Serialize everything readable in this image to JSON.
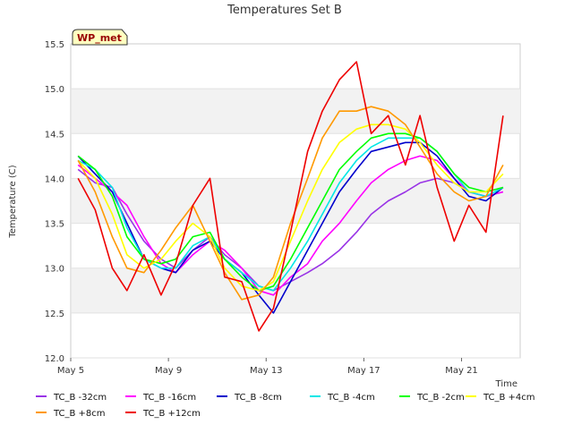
{
  "chart_data": {
    "type": "line",
    "title": "Temperatures Set B",
    "xlabel": "Time",
    "ylabel": "Temperature (C)",
    "site_label": "WP_met",
    "grid": "alternating horizontal bands",
    "legend_position": "bottom",
    "xlim": [
      0,
      18.4
    ],
    "ylim": [
      12.0,
      15.5
    ],
    "x_unit": "days since May 5",
    "xticks": [
      {
        "value": 0,
        "label": "May 5"
      },
      {
        "value": 4,
        "label": "May 9"
      },
      {
        "value": 8,
        "label": "May 13"
      },
      {
        "value": 12,
        "label": "May 17"
      },
      {
        "value": 16,
        "label": "May 21"
      }
    ],
    "yticks": [
      12.0,
      12.5,
      13.0,
      13.5,
      14.0,
      14.5,
      15.0,
      15.5
    ],
    "x": [
      0.3,
      1.0,
      1.7,
      2.3,
      3.0,
      3.7,
      4.3,
      5.0,
      5.7,
      6.3,
      7.0,
      7.7,
      8.3,
      9.0,
      9.7,
      10.3,
      11.0,
      11.7,
      12.3,
      13.0,
      13.7,
      14.3,
      15.0,
      15.7,
      16.3,
      17.0,
      17.7
    ],
    "series": [
      {
        "name": "TC_B -32cm",
        "color": "#9933e6",
        "values": [
          14.1,
          13.95,
          13.9,
          13.6,
          13.3,
          13.1,
          13.0,
          13.2,
          13.35,
          13.15,
          13.0,
          12.8,
          12.75,
          12.85,
          12.95,
          13.05,
          13.2,
          13.4,
          13.6,
          13.75,
          13.85,
          13.95,
          14.0,
          13.95,
          13.85,
          13.8,
          13.85
        ]
      },
      {
        "name": "TC_B -16cm",
        "color": "#ff00ff",
        "values": [
          14.15,
          14.0,
          13.85,
          13.7,
          13.35,
          13.05,
          12.95,
          13.15,
          13.3,
          13.2,
          13.0,
          12.75,
          12.7,
          12.9,
          13.05,
          13.3,
          13.5,
          13.75,
          13.95,
          14.1,
          14.2,
          14.25,
          14.2,
          14.0,
          13.85,
          13.8,
          13.85
        ]
      },
      {
        "name": "TC_B -8cm",
        "color": "#0000cc",
        "values": [
          14.25,
          14.05,
          13.85,
          13.5,
          13.1,
          13.0,
          12.95,
          13.2,
          13.3,
          13.1,
          12.95,
          12.7,
          12.5,
          12.85,
          13.2,
          13.5,
          13.85,
          14.1,
          14.3,
          14.35,
          14.4,
          14.4,
          14.25,
          14.0,
          13.8,
          13.75,
          13.9
        ]
      },
      {
        "name": "TC_B -4cm",
        "color": "#00e6e6",
        "values": [
          14.2,
          14.1,
          13.9,
          13.45,
          13.1,
          13.0,
          13.0,
          13.25,
          13.35,
          13.1,
          12.95,
          12.8,
          12.75,
          13.0,
          13.3,
          13.6,
          13.95,
          14.2,
          14.35,
          14.45,
          14.45,
          14.45,
          14.3,
          14.05,
          13.85,
          13.8,
          13.9
        ]
      },
      {
        "name": "TC_B -2cm",
        "color": "#00ff00",
        "values": [
          14.25,
          14.1,
          13.8,
          13.35,
          13.1,
          13.05,
          13.1,
          13.35,
          13.4,
          13.1,
          12.9,
          12.75,
          12.8,
          13.1,
          13.45,
          13.75,
          14.1,
          14.3,
          14.45,
          14.5,
          14.5,
          14.45,
          14.3,
          14.05,
          13.9,
          13.85,
          13.9
        ]
      },
      {
        "name": "TC_B +4cm",
        "color": "#ffff00",
        "values": [
          14.2,
          14.0,
          13.6,
          13.15,
          13.0,
          13.1,
          13.3,
          13.5,
          13.35,
          13.0,
          12.8,
          12.75,
          12.85,
          13.3,
          13.75,
          14.1,
          14.4,
          14.55,
          14.6,
          14.6,
          14.55,
          14.4,
          14.15,
          13.95,
          13.85,
          13.85,
          14.05
        ]
      },
      {
        "name": "TC_B +8cm",
        "color": "#ff9900",
        "values": [
          14.2,
          13.85,
          13.35,
          13.0,
          12.95,
          13.2,
          13.45,
          13.7,
          13.3,
          12.95,
          12.65,
          12.7,
          12.9,
          13.5,
          14.0,
          14.45,
          14.75,
          14.75,
          14.8,
          14.75,
          14.6,
          14.35,
          14.05,
          13.85,
          13.75,
          13.8,
          14.15
        ]
      },
      {
        "name": "TC_B +12cm",
        "color": "#ee0000",
        "values": [
          14.0,
          13.65,
          13.0,
          12.75,
          13.15,
          12.7,
          13.05,
          13.7,
          14.0,
          12.9,
          12.85,
          12.3,
          12.55,
          13.4,
          14.3,
          14.75,
          15.1,
          15.3,
          14.5,
          14.7,
          14.15,
          14.7,
          13.9,
          13.3,
          13.7,
          13.4,
          14.7
        ]
      }
    ]
  }
}
